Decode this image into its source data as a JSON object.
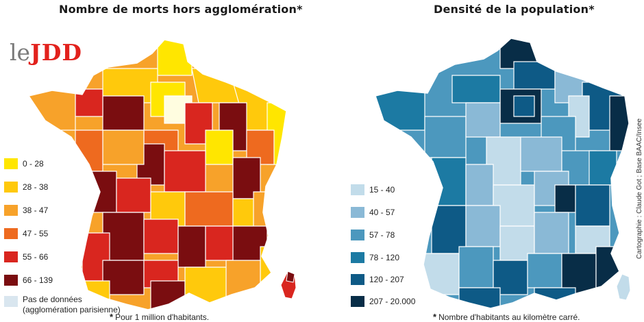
{
  "left_panel": {
    "title": "Nombre de morts hors agglomération*",
    "logo": {
      "le": "le",
      "brand": "JDD"
    },
    "legend": [
      {
        "label": "0 - 28",
        "color": "#ffe600"
      },
      {
        "label": "28 - 38",
        "color": "#ffc90c"
      },
      {
        "label": "38 - 47",
        "color": "#f7a22a"
      },
      {
        "label": "47 - 55",
        "color": "#ee6a1f"
      },
      {
        "label": "55 - 66",
        "color": "#d9261f"
      },
      {
        "label": "66 - 139",
        "color": "#7a0d10"
      }
    ],
    "no_data": {
      "label_line1": "Pas de données",
      "label_line2": "(agglomération parisienne)",
      "color": "#d9e6ef"
    },
    "footnote": {
      "star": "*",
      "text": "Pour 1 million d'habitants."
    }
  },
  "right_panel": {
    "title": "Densité de la population*",
    "legend": [
      {
        "label": "15 - 40",
        "color": "#c2dcea"
      },
      {
        "label": "40 - 57",
        "color": "#8ab9d6"
      },
      {
        "label": "57 - 78",
        "color": "#4c98be"
      },
      {
        "label": "78 - 120",
        "color": "#1c7aa3"
      },
      {
        "label": "120 - 207",
        "color": "#0e5a86"
      },
      {
        "label": "207 - 20.000",
        "color": "#082d47"
      }
    ],
    "footnote": {
      "star": "*",
      "text": "Nombre d'habitants au kilomètre carré."
    },
    "credit": "Cartographie : Claude Got ; Base BAAC/Insee"
  }
}
